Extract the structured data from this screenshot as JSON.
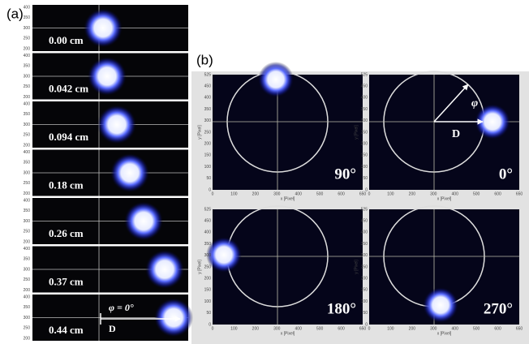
{
  "panel_a": {
    "label": "(a)",
    "frames": [
      "0.00 cm",
      "0.042 cm",
      "0.094 cm",
      "0.18 cm",
      "0.26 cm",
      "0.37 cm",
      "0.44 cm"
    ],
    "yticks": [
      "400",
      "350",
      "300",
      "250",
      "200"
    ],
    "phi_label": "φ = 0°",
    "d_label": "D"
  },
  "panel_b": {
    "label": "(b)",
    "plots": [
      "90°",
      "0°",
      "180°",
      "270°"
    ],
    "xticks": [
      "0",
      "100",
      "200",
      "300",
      "400",
      "500",
      "600",
      "650"
    ],
    "yticks": [
      "525",
      "450",
      "400",
      "350",
      "300",
      "250",
      "200",
      "150",
      "100",
      "50",
      "0"
    ],
    "x_axis": "x [Pixel]",
    "y_axis": "y [Pixel]",
    "phi_label": "φ",
    "d_label": "D"
  }
}
